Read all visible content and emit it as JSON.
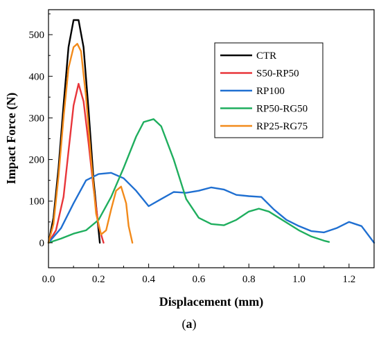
{
  "chart_data": {
    "type": "line",
    "xlabel": "Displacement (mm)",
    "ylabel": "Impact Force (N)",
    "xlim": [
      0.0,
      1.3
    ],
    "ylim": [
      -60,
      560
    ],
    "xticks": [
      "0.0",
      "0.2",
      "0.4",
      "0.6",
      "0.8",
      "1.0",
      "1.2"
    ],
    "yticks": [
      "0",
      "100",
      "200",
      "300",
      "400",
      "500"
    ],
    "grid": false,
    "legend_position": "top-right",
    "caption_prefix": "(",
    "caption_letter": "a",
    "caption_suffix": ")",
    "series": [
      {
        "name": "CTR",
        "color": "#000000",
        "x": [
          0.0,
          0.02,
          0.04,
          0.06,
          0.08,
          0.1,
          0.12,
          0.14,
          0.16,
          0.18,
          0.2,
          0.205
        ],
        "y": [
          0,
          60,
          180,
          330,
          470,
          535,
          535,
          470,
          320,
          150,
          30,
          0
        ]
      },
      {
        "name": "S50-RP50",
        "color": "#e8353a",
        "x": [
          0.0,
          0.03,
          0.06,
          0.08,
          0.1,
          0.12,
          0.14,
          0.16,
          0.18,
          0.2,
          0.22
        ],
        "y": [
          0,
          30,
          110,
          220,
          330,
          382,
          340,
          240,
          130,
          40,
          0
        ]
      },
      {
        "name": "RP100",
        "color": "#1f6fd1",
        "x": [
          0.0,
          0.05,
          0.1,
          0.15,
          0.2,
          0.25,
          0.3,
          0.35,
          0.4,
          0.45,
          0.5,
          0.55,
          0.6,
          0.65,
          0.7,
          0.75,
          0.8,
          0.85,
          0.9,
          0.95,
          1.0,
          1.05,
          1.1,
          1.15,
          1.2,
          1.25,
          1.3
        ],
        "y": [
          0,
          35,
          95,
          150,
          165,
          168,
          155,
          125,
          88,
          105,
          122,
          120,
          125,
          133,
          128,
          115,
          112,
          110,
          80,
          55,
          40,
          28,
          25,
          35,
          50,
          40,
          0
        ]
      },
      {
        "name": "RP50-RG50",
        "color": "#1fae5e",
        "x": [
          0.0,
          0.05,
          0.1,
          0.15,
          0.2,
          0.25,
          0.3,
          0.35,
          0.38,
          0.42,
          0.45,
          0.5,
          0.55,
          0.6,
          0.65,
          0.7,
          0.75,
          0.8,
          0.84,
          0.88,
          0.92,
          1.0,
          1.05,
          1.1,
          1.12
        ],
        "y": [
          0,
          10,
          22,
          30,
          55,
          110,
          180,
          255,
          290,
          297,
          280,
          200,
          105,
          60,
          45,
          42,
          55,
          75,
          82,
          75,
          60,
          30,
          15,
          5,
          2
        ]
      },
      {
        "name": "RP25-RG75",
        "color": "#f28a1a",
        "x": [
          0.0,
          0.02,
          0.04,
          0.06,
          0.08,
          0.1,
          0.115,
          0.13,
          0.15,
          0.17,
          0.19,
          0.21,
          0.23,
          0.25,
          0.27,
          0.29,
          0.31,
          0.32,
          0.335
        ],
        "y": [
          0,
          45,
          160,
          300,
          420,
          470,
          478,
          460,
          350,
          200,
          70,
          20,
          30,
          80,
          125,
          135,
          95,
          40,
          0
        ]
      }
    ]
  }
}
